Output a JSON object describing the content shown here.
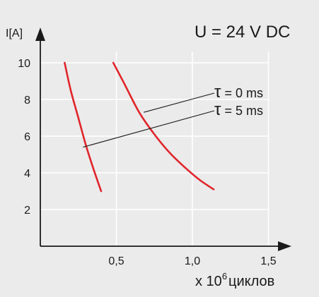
{
  "chart_data": {
    "type": "line",
    "title": "U = 24 V DC",
    "ylabel": "I[A]",
    "xlabel_prefix": "x 10",
    "xlabel_exponent": "6",
    "xlabel_suffix": "циклов",
    "xlim": [
      0,
      1.5
    ],
    "ylim": [
      0,
      10
    ],
    "x_ticks": [
      0.5,
      1.0,
      1.5
    ],
    "x_tick_labels": [
      "0,5",
      "1,0",
      "1,5"
    ],
    "y_ticks": [
      2,
      4,
      6,
      8,
      10
    ],
    "y_tick_labels": [
      "2",
      "4",
      "6",
      "8",
      "10"
    ],
    "grid": true,
    "colors": {
      "series": "#e0262b",
      "axis": "#1a1a1a",
      "grid": "#ffffff",
      "background": "#ebebeb"
    },
    "series": [
      {
        "name": "τ = 5 ms",
        "points": [
          [
            0.16,
            10
          ],
          [
            0.2,
            8.5
          ],
          [
            0.25,
            7
          ],
          [
            0.3,
            5.5
          ],
          [
            0.35,
            4.2
          ],
          [
            0.4,
            3.0
          ]
        ]
      },
      {
        "name": "τ = 0 ms",
        "points": [
          [
            0.48,
            10
          ],
          [
            0.55,
            8.9
          ],
          [
            0.65,
            7.3
          ],
          [
            0.75,
            6.1
          ],
          [
            0.85,
            5.1
          ],
          [
            0.95,
            4.3
          ],
          [
            1.05,
            3.6
          ],
          [
            1.14,
            3.1
          ]
        ]
      }
    ],
    "annotations": [
      {
        "label_prefix": "τ",
        "label_text": " = 0 ms",
        "series": "τ = 0 ms",
        "anchor": [
          0.68,
          7.3
        ]
      },
      {
        "label_prefix": "τ",
        "label_text": " = 5 ms",
        "series": "τ = 5 ms",
        "anchor": [
          0.28,
          5.4
        ]
      }
    ]
  }
}
